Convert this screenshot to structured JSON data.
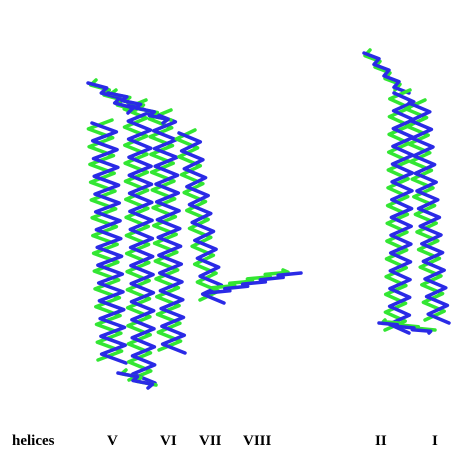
{
  "caption": {
    "label": "helices",
    "helices": [
      "V",
      "VI",
      "VII",
      "VIII",
      "II",
      "I"
    ]
  }
}
